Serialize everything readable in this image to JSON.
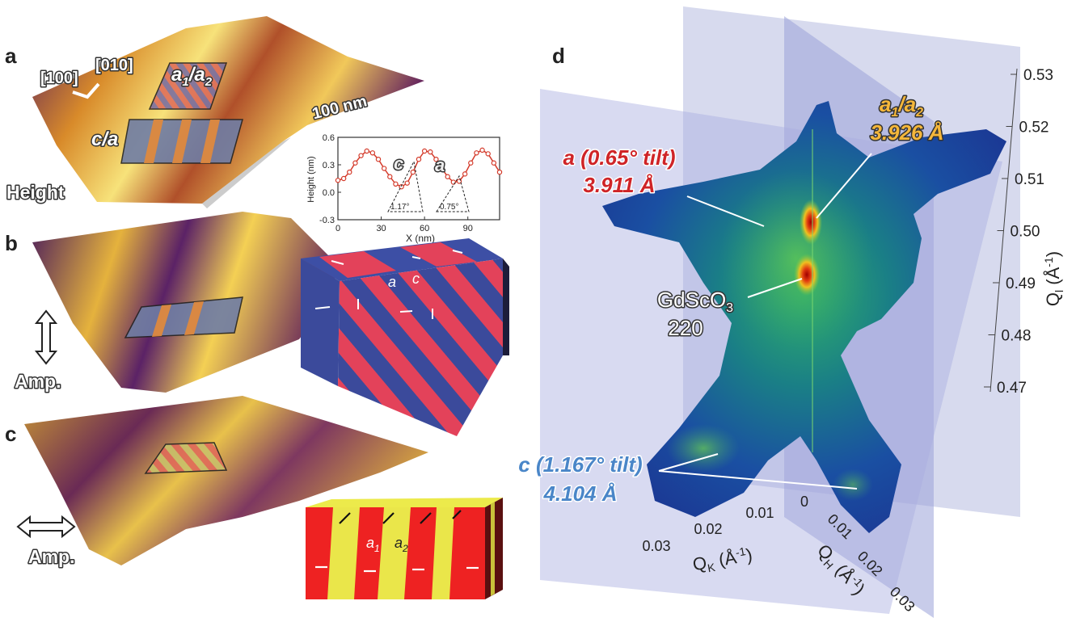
{
  "panels": {
    "a": {
      "label": "a",
      "dir1": "[100]",
      "dir2": "[010]",
      "domain_a1a2_pre": "a",
      "domain_a1a2_sub1": "1",
      "domain_a1a2_mid": "/a",
      "domain_a1a2_sub2": "2",
      "domain_ca": "c/a",
      "scale": "100 nm",
      "channel": "Height"
    },
    "b": {
      "label": "b",
      "channel": "Amp."
    },
    "c": {
      "label": "c",
      "channel": "Amp."
    },
    "d": {
      "label": "d"
    }
  },
  "inset_profile": {
    "ylabel": "Height (nm)",
    "xlabel": "X (nm)",
    "label_c": "c",
    "label_a": "a",
    "angle_left": "1.17°",
    "angle_right": "0.75°",
    "yticks": [
      "0.6",
      "0.3",
      "0.0",
      "-0.3"
    ],
    "xticks": [
      "0",
      "30",
      "60",
      "90"
    ]
  },
  "chart_data": {
    "type": "line",
    "xlabel": "X (nm)",
    "ylabel": "Height (nm)",
    "xlim": [
      0,
      112
    ],
    "ylim": [
      -0.3,
      0.6
    ],
    "x": [
      0,
      4,
      8,
      12,
      16,
      20,
      24,
      28,
      32,
      36,
      40,
      44,
      48,
      52,
      56,
      60,
      64,
      68,
      72,
      76,
      80,
      84,
      88,
      92,
      96,
      100,
      104,
      108,
      112
    ],
    "values": [
      0.13,
      0.15,
      0.22,
      0.32,
      0.4,
      0.45,
      0.43,
      0.36,
      0.26,
      0.17,
      0.09,
      0.06,
      0.1,
      0.22,
      0.36,
      0.45,
      0.44,
      0.36,
      0.26,
      0.17,
      0.11,
      0.12,
      0.2,
      0.32,
      0.43,
      0.46,
      0.42,
      0.32,
      0.22
    ],
    "grid": false
  },
  "block_b": {
    "label_a": "a",
    "label_c": "c"
  },
  "block_c": {
    "label_a": "a",
    "sub_a": "1",
    "label_b": "a",
    "sub_b": "2"
  },
  "rsm": {
    "ann_a_line1": "a (0.65° tilt)",
    "ann_a_line2": "3.911 Å",
    "ann_a1a2_pre": "a",
    "ann_a1a2_sub1": "1",
    "ann_a1a2_mid": "/a",
    "ann_a1a2_sub2": "2",
    "ann_a1a2_line2": "3.926 Å",
    "ann_sub_pre": "GdScO",
    "ann_sub_sub": "3",
    "ann_sub_line2": "220",
    "ann_c_line1": "c (1.167° tilt)",
    "ann_c_line2": "4.104 Å",
    "ql_ticks": [
      "0.53",
      "0.52",
      "0.51",
      "0.50",
      "0.49",
      "0.48",
      "0.47"
    ],
    "ql_label_pre": "Q",
    "ql_label_sub": "l",
    "ql_label_post": " (Å",
    "ql_label_sup": "-1",
    "ql_label_end": ")",
    "qk_ticks": [
      "0.03",
      "0.02",
      "0.01",
      "0"
    ],
    "qk_label_pre": "Q",
    "qk_label_sub": "K",
    "qk_label_post": " (Å",
    "qk_label_sup": "-1",
    "qk_label_end": ")",
    "qh_ticks": [
      "0.01",
      "0.02",
      "0.03"
    ],
    "qh_label_pre": "Q",
    "qh_label_sub": "H",
    "qh_label_post": " (Å",
    "qh_label_sup": "-1",
    "qh_label_end": ")"
  }
}
